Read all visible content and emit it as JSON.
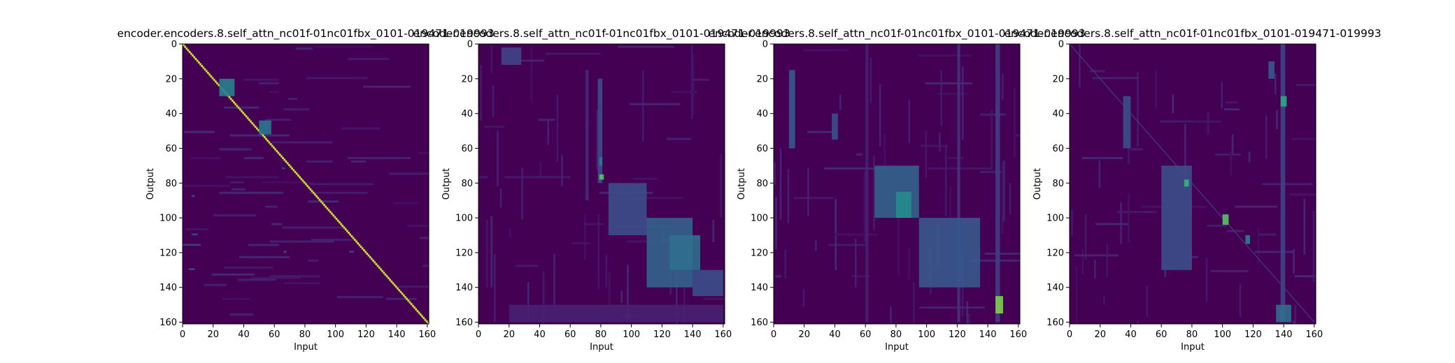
{
  "figure": {
    "background": "#ffffff",
    "colormap": "viridis",
    "colormap_base": "#440154"
  },
  "chart_data": [
    {
      "type": "heatmap",
      "title": "encoder.encoders.8.self_attn_nc01f-01nc01fbx_0101-019471-019993",
      "xlabel": "Input",
      "ylabel": "Output",
      "xlim": [
        0,
        161
      ],
      "ylim": [
        161,
        0
      ],
      "xticks": [
        0,
        20,
        40,
        60,
        80,
        100,
        120,
        140,
        160
      ],
      "yticks": [
        0,
        20,
        40,
        60,
        80,
        100,
        120,
        140,
        160
      ],
      "pattern": "sharp monotonic diagonal alignment",
      "features": [
        {
          "row": 0,
          "col": 0,
          "row2": 160,
          "col2": 160,
          "v": 0.95
        },
        {
          "row": 20,
          "col": 24,
          "row2": 30,
          "col2": 34,
          "v": 0.55
        },
        {
          "row": 44,
          "col": 50,
          "row2": 52,
          "col2": 58,
          "v": 0.5
        },
        {
          "row": 87,
          "col": 6,
          "row2": 88,
          "col2": 8,
          "v": 0.35
        },
        {
          "row": 71,
          "col": 65,
          "row2": 72,
          "col2": 67,
          "v": 0.3
        },
        {
          "row": 109,
          "col": 6,
          "row2": 110,
          "col2": 10,
          "v": 0.3
        },
        {
          "row": 115,
          "col": 0,
          "row2": 116,
          "col2": 12,
          "v": 0.25
        },
        {
          "row": 119,
          "col": 66,
          "row2": 120,
          "col2": 68,
          "v": 0.3
        },
        {
          "row": 119,
          "col": 109,
          "row2": 120,
          "col2": 112,
          "v": 0.3
        },
        {
          "row": 129,
          "col": 4,
          "row2": 130,
          "col2": 8,
          "v": 0.3
        }
      ]
    },
    {
      "type": "heatmap",
      "title": "encoder.encoders.8.self_attn_nc01f-01nc01fbx_0101-019471-019993",
      "xlabel": "Input",
      "ylabel": "Output",
      "xlim": [
        0,
        161
      ],
      "ylim": [
        161,
        0
      ],
      "xticks": [
        0,
        20,
        40,
        60,
        80,
        100,
        120,
        140,
        160
      ],
      "yticks": [
        0,
        20,
        40,
        60,
        80,
        100,
        120,
        140,
        160
      ],
      "pattern": "diffuse attention, band along lower-right",
      "features": [
        {
          "row": 2,
          "col": 15,
          "row2": 12,
          "col2": 28,
          "v": 0.25
        },
        {
          "row": 15,
          "col": 70,
          "row2": 90,
          "col2": 72,
          "v": 0.15
        },
        {
          "row": 20,
          "col": 78,
          "row2": 80,
          "col2": 81,
          "v": 0.3
        },
        {
          "row": 75,
          "col": 79,
          "row2": 78,
          "col2": 82,
          "v": 0.8
        },
        {
          "row": 65,
          "col": 79,
          "row2": 70,
          "col2": 81,
          "v": 0.5
        },
        {
          "row": 80,
          "col": 85,
          "row2": 110,
          "col2": 110,
          "v": 0.3
        },
        {
          "row": 100,
          "col": 110,
          "row2": 140,
          "col2": 140,
          "v": 0.4
        },
        {
          "row": 110,
          "col": 125,
          "row2": 130,
          "col2": 145,
          "v": 0.45
        },
        {
          "row": 130,
          "col": 140,
          "row2": 145,
          "col2": 160,
          "v": 0.3
        },
        {
          "row": 150,
          "col": 20,
          "row2": 160,
          "col2": 160,
          "v": 0.12
        }
      ]
    },
    {
      "type": "heatmap",
      "title": "encoder.encoders.8.self_attn_nc01f-01nc01fbx_0101-019471-019993",
      "xlabel": "Input",
      "ylabel": "Output",
      "xlim": [
        0,
        161
      ],
      "ylim": [
        161,
        0
      ],
      "xticks": [
        0,
        20,
        40,
        60,
        80,
        100,
        120,
        140,
        160
      ],
      "yticks": [
        0,
        20,
        40,
        60,
        80,
        100,
        120,
        140,
        160
      ],
      "pattern": "vertical stripes, diagonal band in lower half",
      "features": [
        {
          "row": 15,
          "col": 10,
          "row2": 60,
          "col2": 14,
          "v": 0.35
        },
        {
          "row": 40,
          "col": 38,
          "row2": 55,
          "col2": 42,
          "v": 0.3
        },
        {
          "row": 0,
          "col": 120,
          "row2": 160,
          "col2": 122,
          "v": 0.18
        },
        {
          "row": 0,
          "col": 145,
          "row2": 160,
          "col2": 148,
          "v": 0.22
        },
        {
          "row": 70,
          "col": 66,
          "row2": 100,
          "col2": 95,
          "v": 0.4
        },
        {
          "row": 85,
          "col": 80,
          "row2": 100,
          "col2": 90,
          "v": 0.6
        },
        {
          "row": 100,
          "col": 95,
          "row2": 140,
          "col2": 135,
          "v": 0.35
        },
        {
          "row": 145,
          "col": 145,
          "row2": 155,
          "col2": 150,
          "v": 0.85
        },
        {
          "row": 0,
          "col": 60,
          "row2": 160,
          "col2": 62,
          "v": 0.12
        }
      ]
    },
    {
      "type": "heatmap",
      "title": "encoder.encoders.8.self_attn_nc01f-01nc01fbx_0101-019471-019993",
      "xlabel": "Input",
      "ylabel": "Output",
      "xlim": [
        0,
        161
      ],
      "ylim": [
        161,
        0
      ],
      "xticks": [
        0,
        20,
        40,
        60,
        80,
        100,
        120,
        140,
        160
      ],
      "yticks": [
        0,
        20,
        40,
        60,
        80,
        100,
        120,
        140,
        160
      ],
      "pattern": "scattered patches, faint diagonal",
      "features": [
        {
          "row": 0,
          "col": 0,
          "row2": 160,
          "col2": 160,
          "v": 0.12
        },
        {
          "row": 30,
          "col": 35,
          "row2": 60,
          "col2": 40,
          "v": 0.3
        },
        {
          "row": 0,
          "col": 138,
          "row2": 160,
          "col2": 141,
          "v": 0.25
        },
        {
          "row": 30,
          "col": 138,
          "row2": 36,
          "col2": 142,
          "v": 0.7
        },
        {
          "row": 70,
          "col": 60,
          "row2": 130,
          "col2": 80,
          "v": 0.3
        },
        {
          "row": 78,
          "col": 75,
          "row2": 82,
          "col2": 78,
          "v": 0.75
        },
        {
          "row": 98,
          "col": 100,
          "row2": 104,
          "col2": 104,
          "v": 0.8
        },
        {
          "row": 110,
          "col": 115,
          "row2": 115,
          "col2": 118,
          "v": 0.55
        },
        {
          "row": 150,
          "col": 135,
          "row2": 160,
          "col2": 145,
          "v": 0.45
        },
        {
          "row": 10,
          "col": 130,
          "row2": 20,
          "col2": 134,
          "v": 0.35
        }
      ]
    }
  ]
}
